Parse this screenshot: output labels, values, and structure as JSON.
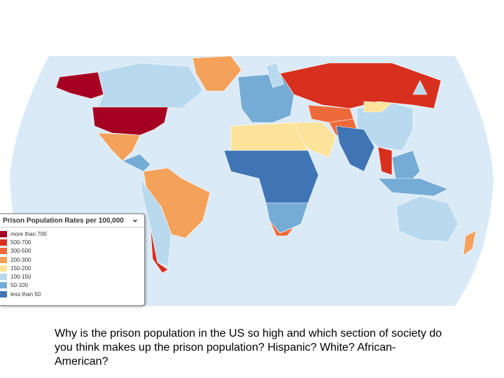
{
  "legend": {
    "title": "Prison Population Rates per 100,000",
    "entries": [
      {
        "label": "more than 700",
        "color": "#a50021"
      },
      {
        "label": "500-700",
        "color": "#d7301f"
      },
      {
        "label": "300-500",
        "color": "#ef6a3a"
      },
      {
        "label": "200-300",
        "color": "#f4a15a"
      },
      {
        "label": "150-200",
        "color": "#fde29a"
      },
      {
        "label": "100-150",
        "color": "#b9d9ee"
      },
      {
        "label": "50-100",
        "color": "#74acd6"
      },
      {
        "label": "less than 50",
        "color": "#3f75b5"
      }
    ]
  },
  "caption": "Why is the prison population in the US so high and which section of society do you think makes up the prison population? Hispanic? White? African-American?"
}
